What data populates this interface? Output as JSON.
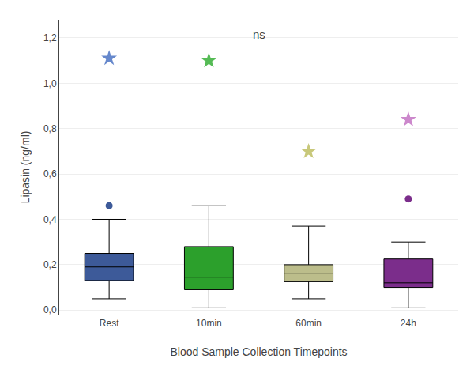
{
  "chart_data": {
    "type": "box",
    "categories": [
      "Rest",
      "10min",
      "60min",
      "24h"
    ],
    "xlabel": "Blood Sample Collection Timepoints",
    "ylabel": "Lipasin (ng/ml)",
    "ylim": [
      -0.02,
      1.28
    ],
    "yticks": [
      {
        "value": 0.0,
        "label": "0,0"
      },
      {
        "value": 0.2,
        "label": "0,2"
      },
      {
        "value": 0.4,
        "label": "0,4"
      },
      {
        "value": 0.6,
        "label": "0,6"
      },
      {
        "value": 0.8,
        "label": "0,8"
      },
      {
        "value": 1.0,
        "label": "1,0"
      },
      {
        "value": 1.2,
        "label": "1,2"
      }
    ],
    "annotations": [
      {
        "text": "ns"
      }
    ],
    "series": [
      {
        "type": "box",
        "colors": [
          "#3d5a99",
          "#2ca02c",
          "#bcbd8b",
          "#7b2d8b"
        ],
        "q1": [
          0.13,
          0.09,
          0.125,
          0.1
        ],
        "median": [
          0.19,
          0.145,
          0.16,
          0.12
        ],
        "q3": [
          0.25,
          0.28,
          0.2,
          0.225
        ],
        "whislo": [
          0.05,
          0.01,
          0.05,
          0.01
        ],
        "whishi": [
          0.4,
          0.46,
          0.37,
          0.3
        ]
      },
      {
        "type": "scatter",
        "marker": "circle",
        "colors": [
          "#3d5a99",
          "#2ca02c",
          "#bcbd8b",
          "#7b2d8b"
        ],
        "values": [
          [
            0.46
          ],
          [],
          [],
          [
            0.49
          ]
        ]
      },
      {
        "type": "scatter",
        "marker": "star",
        "colors": [
          "#6688cc",
          "#55bb55",
          "#c8c87a",
          "#cc88cc"
        ],
        "values": [
          [
            1.11
          ],
          [
            1.1
          ],
          [
            0.7
          ],
          [
            0.84
          ]
        ]
      }
    ]
  }
}
